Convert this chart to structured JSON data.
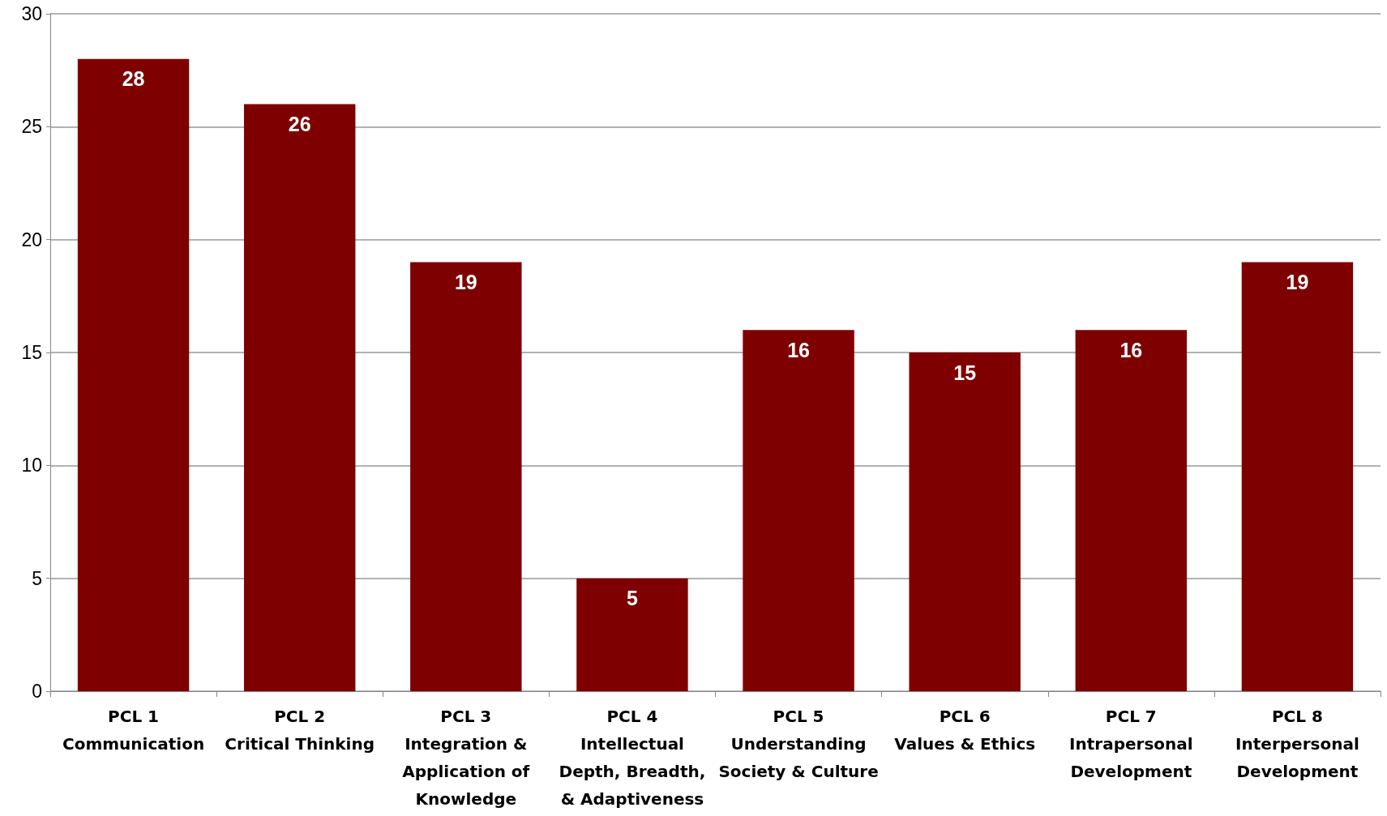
{
  "chart_data": {
    "type": "bar",
    "categories": [
      "PCL 1\nCommunication",
      "PCL 2\nCritical Thinking",
      "PCL 3\nIntegration &\nApplication of\nKnowledge",
      "PCL 4\nIntellectual\nDepth, Breadth,\n& Adaptiveness",
      "PCL 5\nUnderstanding\nSociety & Culture",
      "PCL 6\nValues & Ethics",
      "PCL 7\nIntrapersonal\nDevelopment",
      "PCL 8\nInterpersonal\nDevelopment"
    ],
    "values": [
      28,
      26,
      19,
      5,
      16,
      15,
      16,
      19
    ],
    "color": "#7f0000",
    "ylim": [
      0,
      30
    ],
    "yticks": [
      0,
      5,
      10,
      15,
      20,
      25,
      30
    ],
    "grid": "y",
    "data_labels": true
  }
}
